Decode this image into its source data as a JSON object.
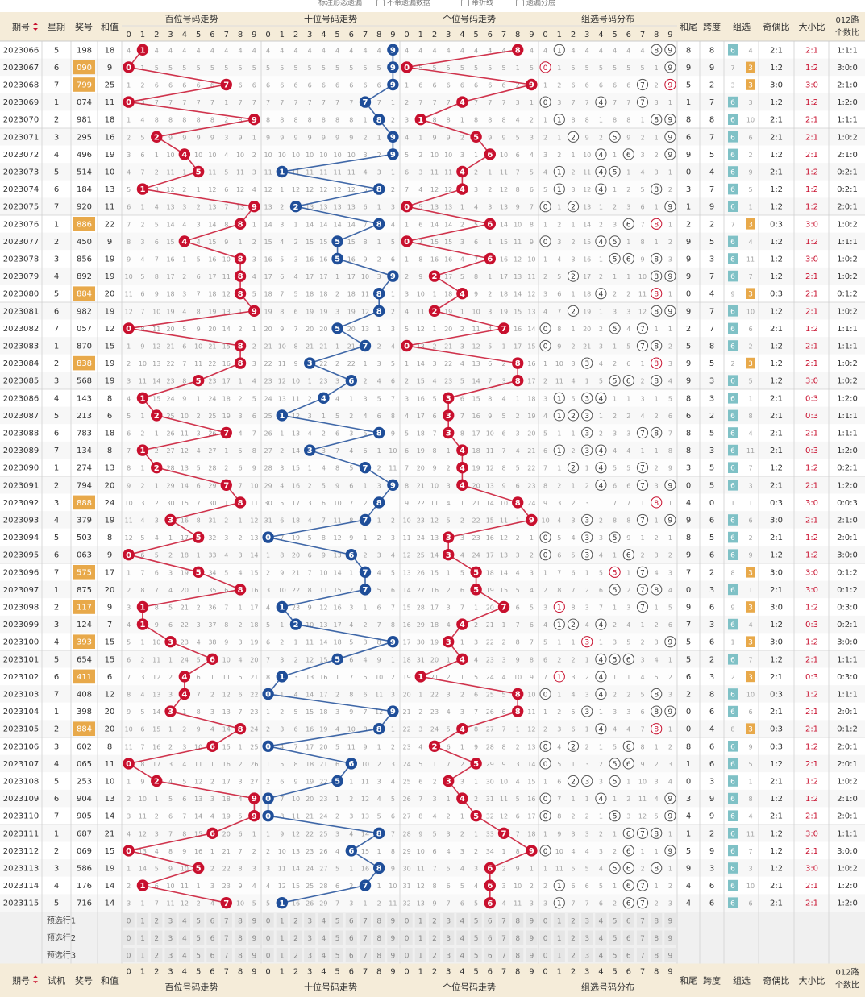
{
  "top_options": [
    "标注形态遗漏",
    "不带遗漏数据",
    "带折线",
    "遗漏分层"
  ],
  "header": {
    "period": "期号",
    "weekday": "星期",
    "prize": "奖号",
    "sum": "和值",
    "hundreds": "百位号码走势",
    "tens": "十位号码走势",
    "units": "个位号码走势",
    "group_dist": "组选号码分布",
    "tail": "和尾",
    "span": "跨度",
    "group": "组选",
    "odd_even": "奇偶比",
    "big_small": "大小比",
    "route012": "012路个数比"
  },
  "footer": {
    "period": "期号",
    "trial": "试机",
    "prize": "奖号",
    "sum": "和值",
    "hundreds": "百位号码走势",
    "tens": "十位号码走势",
    "units": "个位号码走势",
    "group_dist": "组选号码分布",
    "tail": "和尾",
    "span": "跨度",
    "group": "组选",
    "odd_even": "奇偶比",
    "big_small": "大小比",
    "route012": "012路个数比"
  },
  "preselect_labels": [
    "预选行1",
    "预选行2",
    "预选行3"
  ],
  "digits": [
    "0",
    "1",
    "2",
    "3",
    "4",
    "5",
    "6",
    "7",
    "8",
    "9"
  ],
  "group_labels": {
    "g6": "6",
    "g3": "3"
  },
  "colors": {
    "red": "#c8102e",
    "blue": "#1f4e99",
    "gold": "#e8a94a",
    "teal": "#7fc1c6"
  },
  "rows": [
    {
      "p": "2023066",
      "w": "5",
      "n": "198",
      "s": "18",
      "oe": "2:1",
      "bs": "2:1",
      "r": "1:1:1"
    },
    {
      "p": "2023067",
      "w": "6",
      "n": "090",
      "s": "9",
      "oe": "1:2",
      "bs": "1:2",
      "r": "3:0:0"
    },
    {
      "p": "2023068",
      "w": "7",
      "n": "799",
      "s": "25",
      "oe": "3:0",
      "bs": "3:0",
      "r": "2:1:0"
    },
    {
      "p": "2023069",
      "w": "1",
      "n": "074",
      "s": "11",
      "oe": "1:2",
      "bs": "1:2",
      "r": "1:2:0"
    },
    {
      "p": "2023070",
      "w": "2",
      "n": "981",
      "s": "18",
      "oe": "2:1",
      "bs": "2:1",
      "r": "1:1:1"
    },
    {
      "p": "2023071",
      "w": "3",
      "n": "295",
      "s": "16",
      "oe": "2:1",
      "bs": "2:1",
      "r": "1:0:2"
    },
    {
      "p": "2023072",
      "w": "4",
      "n": "496",
      "s": "19",
      "oe": "1:2",
      "bs": "2:1",
      "r": "2:1:0"
    },
    {
      "p": "2023073",
      "w": "5",
      "n": "514",
      "s": "10",
      "oe": "2:1",
      "bs": "1:2",
      "r": "0:2:1"
    },
    {
      "p": "2023074",
      "w": "6",
      "n": "184",
      "s": "13",
      "oe": "1:2",
      "bs": "1:2",
      "r": "0:2:1"
    },
    {
      "p": "2023075",
      "w": "7",
      "n": "920",
      "s": "11",
      "oe": "1:2",
      "bs": "1:2",
      "r": "2:0:1"
    },
    {
      "p": "2023076",
      "w": "1",
      "n": "886",
      "s": "22",
      "oe": "0:3",
      "bs": "3:0",
      "r": "1:0:2"
    },
    {
      "p": "2023077",
      "w": "2",
      "n": "450",
      "s": "9",
      "oe": "1:2",
      "bs": "1:2",
      "r": "1:1:1"
    },
    {
      "p": "2023078",
      "w": "3",
      "n": "856",
      "s": "19",
      "oe": "1:2",
      "bs": "3:0",
      "r": "1:0:2"
    },
    {
      "p": "2023079",
      "w": "4",
      "n": "892",
      "s": "19",
      "oe": "1:2",
      "bs": "2:1",
      "r": "1:0:2"
    },
    {
      "p": "2023080",
      "w": "5",
      "n": "884",
      "s": "20",
      "oe": "0:3",
      "bs": "2:1",
      "r": "0:1:2"
    },
    {
      "p": "2023081",
      "w": "6",
      "n": "982",
      "s": "19",
      "oe": "1:2",
      "bs": "2:1",
      "r": "1:0:2"
    },
    {
      "p": "2023082",
      "w": "7",
      "n": "057",
      "s": "12",
      "oe": "2:1",
      "bs": "1:2",
      "r": "1:1:1"
    },
    {
      "p": "2023083",
      "w": "1",
      "n": "870",
      "s": "15",
      "oe": "1:2",
      "bs": "2:1",
      "r": "1:1:1"
    },
    {
      "p": "2023084",
      "w": "2",
      "n": "838",
      "s": "19",
      "oe": "1:2",
      "bs": "2:1",
      "r": "1:0:2"
    },
    {
      "p": "2023085",
      "w": "3",
      "n": "568",
      "s": "19",
      "oe": "1:2",
      "bs": "3:0",
      "r": "1:0:2"
    },
    {
      "p": "2023086",
      "w": "4",
      "n": "143",
      "s": "8",
      "oe": "2:1",
      "bs": "0:3",
      "r": "1:2:0"
    },
    {
      "p": "2023087",
      "w": "5",
      "n": "213",
      "s": "6",
      "oe": "2:1",
      "bs": "0:3",
      "r": "1:1:1"
    },
    {
      "p": "2023088",
      "w": "6",
      "n": "783",
      "s": "18",
      "oe": "2:1",
      "bs": "2:1",
      "r": "1:1:1"
    },
    {
      "p": "2023089",
      "w": "7",
      "n": "134",
      "s": "8",
      "oe": "2:1",
      "bs": "0:3",
      "r": "1:2:0"
    },
    {
      "p": "2023090",
      "w": "1",
      "n": "274",
      "s": "13",
      "oe": "1:2",
      "bs": "1:2",
      "r": "0:2:1"
    },
    {
      "p": "2023091",
      "w": "2",
      "n": "794",
      "s": "20",
      "oe": "2:1",
      "bs": "2:1",
      "r": "1:2:0"
    },
    {
      "p": "2023092",
      "w": "3",
      "n": "888",
      "s": "24",
      "oe": "0:3",
      "bs": "3:0",
      "r": "0:0:3"
    },
    {
      "p": "2023093",
      "w": "4",
      "n": "379",
      "s": "19",
      "oe": "3:0",
      "bs": "2:1",
      "r": "2:1:0"
    },
    {
      "p": "2023094",
      "w": "5",
      "n": "503",
      "s": "8",
      "oe": "2:1",
      "bs": "1:2",
      "r": "2:0:1"
    },
    {
      "p": "2023095",
      "w": "6",
      "n": "063",
      "s": "9",
      "oe": "1:2",
      "bs": "1:2",
      "r": "3:0:0"
    },
    {
      "p": "2023096",
      "w": "7",
      "n": "575",
      "s": "17",
      "oe": "3:0",
      "bs": "3:0",
      "r": "0:1:2"
    },
    {
      "p": "2023097",
      "w": "1",
      "n": "875",
      "s": "20",
      "oe": "2:1",
      "bs": "3:0",
      "r": "0:1:2"
    },
    {
      "p": "2023098",
      "w": "2",
      "n": "117",
      "s": "9",
      "oe": "3:0",
      "bs": "1:2",
      "r": "0:3:0"
    },
    {
      "p": "2023099",
      "w": "3",
      "n": "124",
      "s": "7",
      "oe": "1:2",
      "bs": "0:3",
      "r": "0:2:1"
    },
    {
      "p": "2023100",
      "w": "4",
      "n": "393",
      "s": "15",
      "oe": "3:0",
      "bs": "1:2",
      "r": "3:0:0"
    },
    {
      "p": "2023101",
      "w": "5",
      "n": "654",
      "s": "15",
      "oe": "1:2",
      "bs": "2:1",
      "r": "1:1:1"
    },
    {
      "p": "2023102",
      "w": "6",
      "n": "411",
      "s": "6",
      "oe": "2:1",
      "bs": "0:3",
      "r": "0:3:0"
    },
    {
      "p": "2023103",
      "w": "7",
      "n": "408",
      "s": "12",
      "oe": "0:3",
      "bs": "1:2",
      "r": "1:1:1"
    },
    {
      "p": "2023104",
      "w": "1",
      "n": "398",
      "s": "20",
      "oe": "2:1",
      "bs": "2:1",
      "r": "2:0:1"
    },
    {
      "p": "2023105",
      "w": "2",
      "n": "884",
      "s": "20",
      "oe": "0:3",
      "bs": "2:1",
      "r": "0:1:2"
    },
    {
      "p": "2023106",
      "w": "3",
      "n": "602",
      "s": "8",
      "oe": "0:3",
      "bs": "1:2",
      "r": "2:0:1"
    },
    {
      "p": "2023107",
      "w": "4",
      "n": "065",
      "s": "11",
      "oe": "1:2",
      "bs": "2:1",
      "r": "2:0:1"
    },
    {
      "p": "2023108",
      "w": "5",
      "n": "253",
      "s": "10",
      "oe": "2:1",
      "bs": "1:2",
      "r": "1:0:2"
    },
    {
      "p": "2023109",
      "w": "6",
      "n": "904",
      "s": "13",
      "oe": "1:2",
      "bs": "1:2",
      "r": "2:1:0"
    },
    {
      "p": "2023110",
      "w": "7",
      "n": "905",
      "s": "14",
      "oe": "2:1",
      "bs": "2:1",
      "r": "2:0:1"
    },
    {
      "p": "2023111",
      "w": "1",
      "n": "687",
      "s": "21",
      "oe": "1:2",
      "bs": "3:0",
      "r": "1:1:1"
    },
    {
      "p": "2023112",
      "w": "2",
      "n": "069",
      "s": "15",
      "oe": "1:2",
      "bs": "2:1",
      "r": "3:0:0"
    },
    {
      "p": "2023113",
      "w": "3",
      "n": "586",
      "s": "19",
      "oe": "1:2",
      "bs": "3:0",
      "r": "1:0:2"
    },
    {
      "p": "2023114",
      "w": "4",
      "n": "176",
      "s": "14",
      "oe": "2:1",
      "bs": "2:1",
      "r": "1:2:0"
    },
    {
      "p": "2023115",
      "w": "5",
      "n": "716",
      "s": "14",
      "oe": "2:1",
      "bs": "2:1",
      "r": "1:2:0"
    }
  ]
}
